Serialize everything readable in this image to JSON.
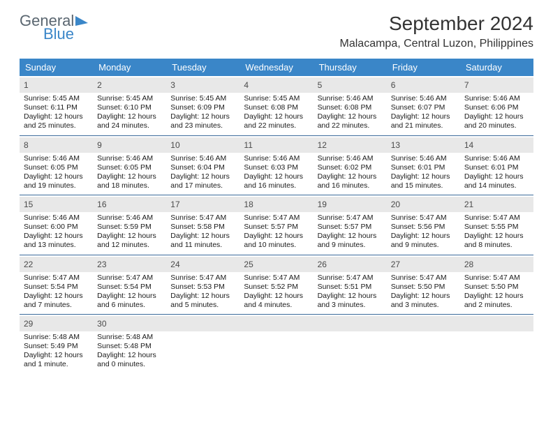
{
  "brand": {
    "word1": "General",
    "word2": "Blue",
    "accent": "#3a86c8"
  },
  "title": {
    "month": "September 2024",
    "location": "Malacampa, Central Luzon, Philippines"
  },
  "dayNames": [
    "Sunday",
    "Monday",
    "Tuesday",
    "Wednesday",
    "Thursday",
    "Friday",
    "Saturday"
  ],
  "colors": {
    "headerBg": "#3a86c8",
    "rowDivider": "#3a6a9a",
    "dayNumBg": "#e8e8e8"
  },
  "labels": {
    "sunrise": "Sunrise:",
    "sunset": "Sunset:",
    "daylight": "Daylight:"
  },
  "weeks": [
    [
      {
        "n": "1",
        "sunrise": "5:45 AM",
        "sunset": "6:11 PM",
        "daylight": "12 hours and 25 minutes."
      },
      {
        "n": "2",
        "sunrise": "5:45 AM",
        "sunset": "6:10 PM",
        "daylight": "12 hours and 24 minutes."
      },
      {
        "n": "3",
        "sunrise": "5:45 AM",
        "sunset": "6:09 PM",
        "daylight": "12 hours and 23 minutes."
      },
      {
        "n": "4",
        "sunrise": "5:45 AM",
        "sunset": "6:08 PM",
        "daylight": "12 hours and 22 minutes."
      },
      {
        "n": "5",
        "sunrise": "5:46 AM",
        "sunset": "6:08 PM",
        "daylight": "12 hours and 22 minutes."
      },
      {
        "n": "6",
        "sunrise": "5:46 AM",
        "sunset": "6:07 PM",
        "daylight": "12 hours and 21 minutes."
      },
      {
        "n": "7",
        "sunrise": "5:46 AM",
        "sunset": "6:06 PM",
        "daylight": "12 hours and 20 minutes."
      }
    ],
    [
      {
        "n": "8",
        "sunrise": "5:46 AM",
        "sunset": "6:05 PM",
        "daylight": "12 hours and 19 minutes."
      },
      {
        "n": "9",
        "sunrise": "5:46 AM",
        "sunset": "6:05 PM",
        "daylight": "12 hours and 18 minutes."
      },
      {
        "n": "10",
        "sunrise": "5:46 AM",
        "sunset": "6:04 PM",
        "daylight": "12 hours and 17 minutes."
      },
      {
        "n": "11",
        "sunrise": "5:46 AM",
        "sunset": "6:03 PM",
        "daylight": "12 hours and 16 minutes."
      },
      {
        "n": "12",
        "sunrise": "5:46 AM",
        "sunset": "6:02 PM",
        "daylight": "12 hours and 16 minutes."
      },
      {
        "n": "13",
        "sunrise": "5:46 AM",
        "sunset": "6:01 PM",
        "daylight": "12 hours and 15 minutes."
      },
      {
        "n": "14",
        "sunrise": "5:46 AM",
        "sunset": "6:01 PM",
        "daylight": "12 hours and 14 minutes."
      }
    ],
    [
      {
        "n": "15",
        "sunrise": "5:46 AM",
        "sunset": "6:00 PM",
        "daylight": "12 hours and 13 minutes."
      },
      {
        "n": "16",
        "sunrise": "5:46 AM",
        "sunset": "5:59 PM",
        "daylight": "12 hours and 12 minutes."
      },
      {
        "n": "17",
        "sunrise": "5:47 AM",
        "sunset": "5:58 PM",
        "daylight": "12 hours and 11 minutes."
      },
      {
        "n": "18",
        "sunrise": "5:47 AM",
        "sunset": "5:57 PM",
        "daylight": "12 hours and 10 minutes."
      },
      {
        "n": "19",
        "sunrise": "5:47 AM",
        "sunset": "5:57 PM",
        "daylight": "12 hours and 9 minutes."
      },
      {
        "n": "20",
        "sunrise": "5:47 AM",
        "sunset": "5:56 PM",
        "daylight": "12 hours and 9 minutes."
      },
      {
        "n": "21",
        "sunrise": "5:47 AM",
        "sunset": "5:55 PM",
        "daylight": "12 hours and 8 minutes."
      }
    ],
    [
      {
        "n": "22",
        "sunrise": "5:47 AM",
        "sunset": "5:54 PM",
        "daylight": "12 hours and 7 minutes."
      },
      {
        "n": "23",
        "sunrise": "5:47 AM",
        "sunset": "5:54 PM",
        "daylight": "12 hours and 6 minutes."
      },
      {
        "n": "24",
        "sunrise": "5:47 AM",
        "sunset": "5:53 PM",
        "daylight": "12 hours and 5 minutes."
      },
      {
        "n": "25",
        "sunrise": "5:47 AM",
        "sunset": "5:52 PM",
        "daylight": "12 hours and 4 minutes."
      },
      {
        "n": "26",
        "sunrise": "5:47 AM",
        "sunset": "5:51 PM",
        "daylight": "12 hours and 3 minutes."
      },
      {
        "n": "27",
        "sunrise": "5:47 AM",
        "sunset": "5:50 PM",
        "daylight": "12 hours and 3 minutes."
      },
      {
        "n": "28",
        "sunrise": "5:47 AM",
        "sunset": "5:50 PM",
        "daylight": "12 hours and 2 minutes."
      }
    ],
    [
      {
        "n": "29",
        "sunrise": "5:48 AM",
        "sunset": "5:49 PM",
        "daylight": "12 hours and 1 minute."
      },
      {
        "n": "30",
        "sunrise": "5:48 AM",
        "sunset": "5:48 PM",
        "daylight": "12 hours and 0 minutes."
      },
      null,
      null,
      null,
      null,
      null
    ]
  ]
}
